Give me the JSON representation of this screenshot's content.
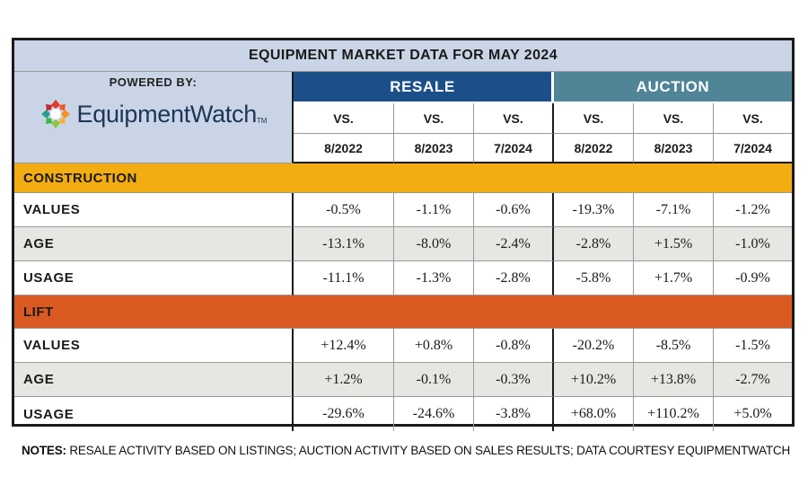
{
  "title": "EQUIPMENT MARKET DATA FOR MAY 2024",
  "brand": {
    "powered_by": "POWERED BY:",
    "logo_text": "EquipmentWatch",
    "logo_tm": "TM",
    "logo_colors": [
      "#e03a2c",
      "#f7941d",
      "#8dc63f",
      "#2a9d8f"
    ]
  },
  "groups": {
    "resale": "RESALE",
    "auction": "AUCTION"
  },
  "columns": [
    {
      "vs": "VS.",
      "date": "8/2022"
    },
    {
      "vs": "VS.",
      "date": "8/2023"
    },
    {
      "vs": "VS.",
      "date": "7/2024"
    },
    {
      "vs": "VS.",
      "date": "8/2022"
    },
    {
      "vs": "VS.",
      "date": "8/2023"
    },
    {
      "vs": "VS.",
      "date": "7/2024"
    }
  ],
  "sections": [
    {
      "name": "CONSTRUCTION",
      "rows": [
        {
          "label": "VALUES",
          "values": [
            "-0.5%",
            "-1.1%",
            "-0.6%",
            "-19.3%",
            "-7.1%",
            "-1.2%"
          ]
        },
        {
          "label": "AGE",
          "values": [
            "-13.1%",
            "-8.0%",
            "-2.4%",
            "-2.8%",
            "+1.5%",
            "-1.0%"
          ]
        },
        {
          "label": "USAGE",
          "values": [
            "-11.1%",
            "-1.3%",
            "-2.8%",
            "-5.8%",
            "+1.7%",
            "-0.9%"
          ]
        }
      ]
    },
    {
      "name": "LIFT",
      "rows": [
        {
          "label": "VALUES",
          "values": [
            "+12.4%",
            "+0.8%",
            "-0.8%",
            "-20.2%",
            "-8.5%",
            "-1.5%"
          ]
        },
        {
          "label": "AGE",
          "values": [
            "+1.2%",
            "-0.1%",
            "-0.3%",
            "+10.2%",
            "+13.8%",
            "-2.7%"
          ]
        },
        {
          "label": "USAGE",
          "values": [
            "-29.6%",
            "-24.6%",
            "-3.8%",
            "+68.0%",
            "+110.2%",
            "+5.0%"
          ]
        }
      ]
    }
  ],
  "notes": {
    "label": "NOTES:",
    "text": " RESALE ACTIVITY BASED ON LISTINGS; AUCTION ACTIVITY BASED ON SALES RESULTS; DATA COURTESY EQUIPMENTWATCH"
  },
  "colors": {
    "header_bg": "#c9d5e6",
    "resale_bg": "#1c4f8a",
    "auction_bg": "#4f8597",
    "construction_bg": "#f2ad13",
    "lift_bg": "#db5a22",
    "shaded_row": "#e8e6e2"
  }
}
